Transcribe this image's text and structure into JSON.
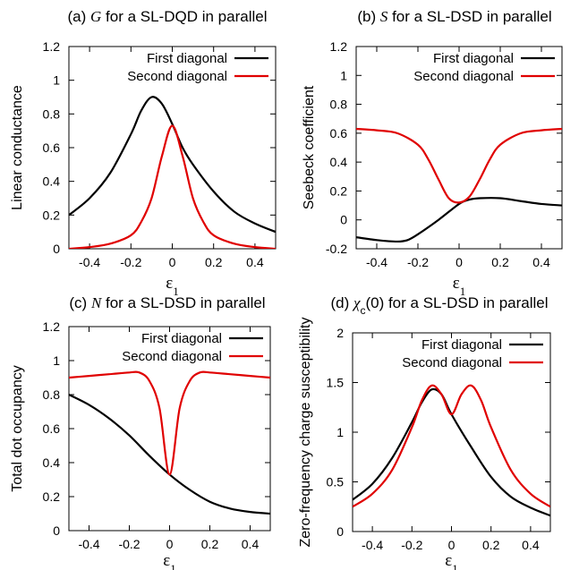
{
  "colors": {
    "first": "#000000",
    "second": "#e00000"
  },
  "chart_data": [
    {
      "id": "a",
      "type": "line",
      "title_prefix": "(a) ",
      "title_symbol": "G",
      "title_suffix": " for a SL-DQD in parallel",
      "xlabel_symbol": "ε",
      "xlabel_sub": "1",
      "ylabel": "Linear conductance",
      "xlim": [
        -0.5,
        0.5
      ],
      "ylim": [
        0,
        1.2
      ],
      "xticks": [
        -0.4,
        -0.2,
        0,
        0.2,
        0.4
      ],
      "xtick_labels": [
        "-0.4",
        "-0.2",
        "0",
        "0.2",
        "0.4"
      ],
      "yticks": [
        0,
        0.2,
        0.4,
        0.6,
        0.8,
        1,
        1.2
      ],
      "ytick_labels": [
        "0",
        "0.2",
        "0.4",
        "0.6",
        "0.8",
        "1",
        "1.2"
      ],
      "legend": "top-right",
      "series": [
        {
          "name": "First diagonal",
          "color": "#000000",
          "x": [
            -0.5,
            -0.4,
            -0.3,
            -0.2,
            -0.15,
            -0.1,
            -0.05,
            0,
            0.05,
            0.1,
            0.2,
            0.3,
            0.4,
            0.5
          ],
          "y": [
            0.2,
            0.3,
            0.45,
            0.68,
            0.82,
            0.9,
            0.86,
            0.74,
            0.6,
            0.5,
            0.34,
            0.22,
            0.15,
            0.1
          ]
        },
        {
          "name": "Second diagonal",
          "color": "#e00000",
          "x": [
            -0.5,
            -0.4,
            -0.3,
            -0.2,
            -0.15,
            -0.1,
            -0.05,
            0,
            0.05,
            0.1,
            0.15,
            0.2,
            0.3,
            0.4,
            0.5
          ],
          "y": [
            0.0,
            0.01,
            0.03,
            0.08,
            0.16,
            0.3,
            0.55,
            0.73,
            0.55,
            0.3,
            0.16,
            0.08,
            0.03,
            0.01,
            0.0
          ]
        }
      ]
    },
    {
      "id": "b",
      "type": "line",
      "title_prefix": "(b) ",
      "title_symbol": "S",
      "title_suffix": " for a SL-DSD in parallel",
      "xlabel_symbol": "ε",
      "xlabel_sub": "1",
      "ylabel": "Seebeck coefficient",
      "xlim": [
        -0.5,
        0.5
      ],
      "ylim": [
        -0.2,
        1.2
      ],
      "xticks": [
        -0.4,
        -0.2,
        0,
        0.2,
        0.4
      ],
      "xtick_labels": [
        "-0.4",
        "-0.2",
        "0",
        "0.2",
        "0.4"
      ],
      "yticks": [
        -0.2,
        0,
        0.2,
        0.4,
        0.6,
        0.8,
        1,
        1.2
      ],
      "ytick_labels": [
        "-0.2",
        "0",
        "0.2",
        "0.4",
        "0.6",
        "0.8",
        "1",
        "1.2"
      ],
      "legend": "top-right",
      "series": [
        {
          "name": "First diagonal",
          "color": "#000000",
          "x": [
            -0.5,
            -0.4,
            -0.3,
            -0.25,
            -0.2,
            -0.1,
            0,
            0.05,
            0.1,
            0.2,
            0.3,
            0.4,
            0.5
          ],
          "y": [
            -0.12,
            -0.14,
            -0.15,
            -0.14,
            -0.1,
            0.0,
            0.11,
            0.14,
            0.15,
            0.15,
            0.13,
            0.11,
            0.1
          ]
        },
        {
          "name": "Second diagonal",
          "color": "#e00000",
          "x": [
            -0.5,
            -0.4,
            -0.3,
            -0.2,
            -0.15,
            -0.1,
            -0.05,
            0,
            0.05,
            0.1,
            0.15,
            0.2,
            0.3,
            0.4,
            0.5
          ],
          "y": [
            0.63,
            0.62,
            0.6,
            0.52,
            0.42,
            0.28,
            0.15,
            0.12,
            0.16,
            0.28,
            0.42,
            0.52,
            0.6,
            0.62,
            0.63
          ]
        }
      ]
    },
    {
      "id": "c",
      "type": "line",
      "title_prefix": "(c) ",
      "title_symbol": "N",
      "title_suffix": " for a SL-DSD in parallel",
      "xlabel_symbol": "ε",
      "xlabel_sub": "1",
      "ylabel": "Total dot occupancy",
      "xlim": [
        -0.5,
        0.5
      ],
      "ylim": [
        0,
        1.2
      ],
      "xticks": [
        -0.4,
        -0.2,
        0,
        0.2,
        0.4
      ],
      "xtick_labels": [
        "-0.4",
        "-0.2",
        "0",
        "0.2",
        "0.4"
      ],
      "yticks": [
        0,
        0.2,
        0.4,
        0.6,
        0.8,
        1,
        1.2
      ],
      "ytick_labels": [
        "0",
        "0.2",
        "0.4",
        "0.6",
        "0.8",
        "1",
        "1.2"
      ],
      "legend": "top-right",
      "series": [
        {
          "name": "First diagonal",
          "color": "#000000",
          "x": [
            -0.5,
            -0.4,
            -0.3,
            -0.2,
            -0.1,
            0,
            0.1,
            0.2,
            0.3,
            0.4,
            0.5
          ],
          "y": [
            0.8,
            0.74,
            0.66,
            0.56,
            0.44,
            0.33,
            0.24,
            0.17,
            0.13,
            0.11,
            0.1
          ]
        },
        {
          "name": "Second diagonal",
          "color": "#e00000",
          "x": [
            -0.5,
            -0.4,
            -0.3,
            -0.2,
            -0.15,
            -0.1,
            -0.05,
            0,
            0.05,
            0.1,
            0.15,
            0.2,
            0.3,
            0.4,
            0.5
          ],
          "y": [
            0.9,
            0.91,
            0.92,
            0.93,
            0.93,
            0.88,
            0.72,
            0.33,
            0.72,
            0.88,
            0.93,
            0.93,
            0.92,
            0.91,
            0.9
          ]
        }
      ]
    },
    {
      "id": "d",
      "type": "line",
      "title_prefix": "(d) ",
      "title_symbol": "χ",
      "title_symbol_sub": "c",
      "title_suffix": "(0) for a SL-DSD in parallel",
      "xlabel_symbol": "ε",
      "xlabel_sub": "1",
      "ylabel": "Zero-frequency charge susceptibility",
      "xlim": [
        -0.5,
        0.5
      ],
      "ylim": [
        0,
        2
      ],
      "xticks": [
        -0.4,
        -0.2,
        0,
        0.2,
        0.4
      ],
      "xtick_labels": [
        "-0.4",
        "-0.2",
        "0",
        "0.2",
        "0.4"
      ],
      "yticks": [
        0,
        0.5,
        1,
        1.5,
        2
      ],
      "ytick_labels": [
        "0",
        "0.5",
        "1",
        "1.5",
        "2"
      ],
      "legend": "top-right",
      "series": [
        {
          "name": "First diagonal",
          "color": "#000000",
          "x": [
            -0.5,
            -0.4,
            -0.3,
            -0.2,
            -0.15,
            -0.1,
            -0.05,
            0,
            0.1,
            0.2,
            0.3,
            0.4,
            0.5
          ],
          "y": [
            0.32,
            0.48,
            0.74,
            1.1,
            1.3,
            1.43,
            1.38,
            1.18,
            0.85,
            0.55,
            0.35,
            0.24,
            0.16
          ]
        },
        {
          "name": "Second diagonal",
          "color": "#e00000",
          "x": [
            -0.5,
            -0.4,
            -0.3,
            -0.2,
            -0.15,
            -0.1,
            -0.05,
            0,
            0.05,
            0.1,
            0.15,
            0.2,
            0.3,
            0.4,
            0.5
          ],
          "y": [
            0.25,
            0.38,
            0.62,
            1.05,
            1.32,
            1.47,
            1.38,
            1.18,
            1.38,
            1.47,
            1.32,
            1.05,
            0.62,
            0.38,
            0.25
          ]
        }
      ]
    }
  ]
}
